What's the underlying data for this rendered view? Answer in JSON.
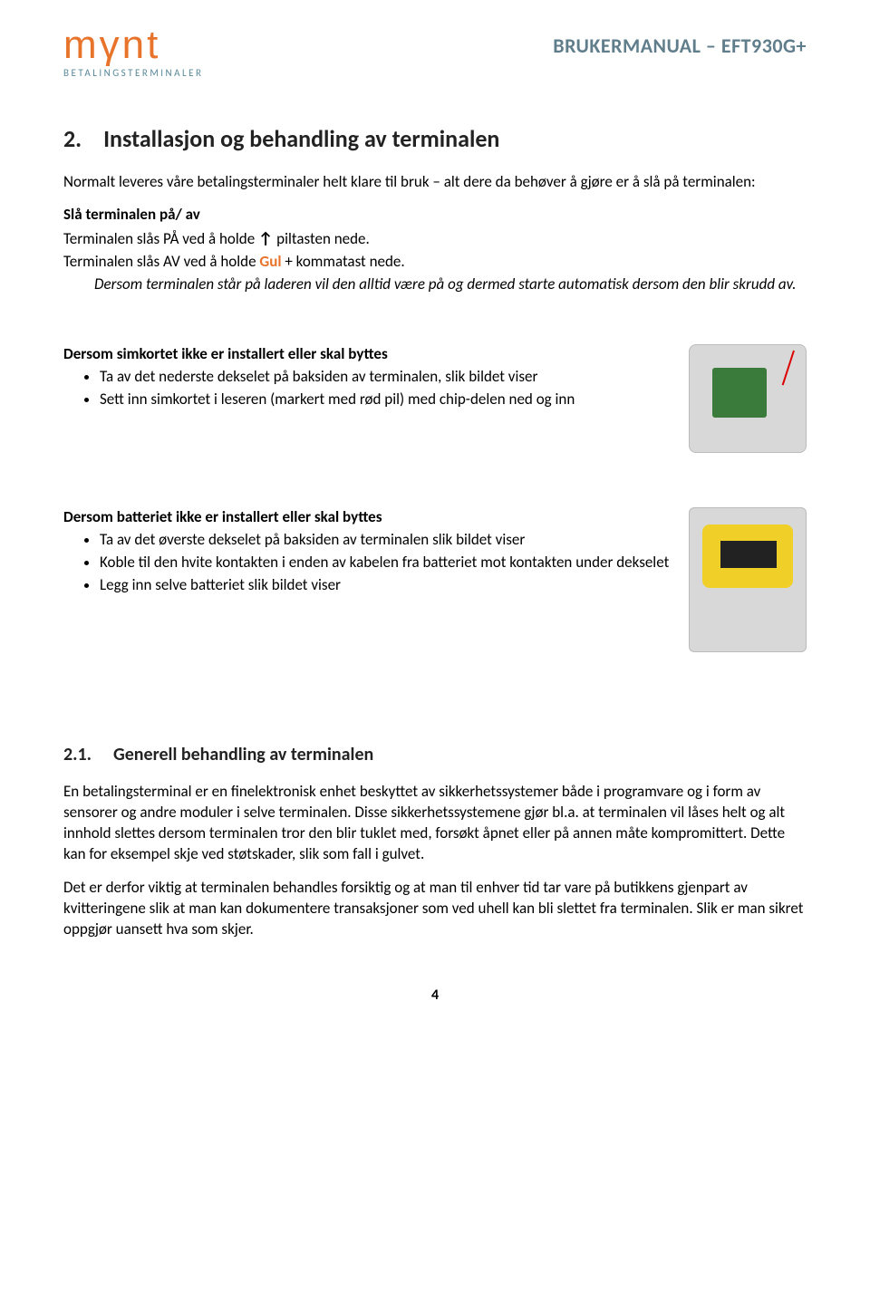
{
  "header": {
    "logo_word": "mγnt",
    "logo_sub": "BETALINGSTERMINALER",
    "title": "BRUKERMANUAL – EFT930G+"
  },
  "section2": {
    "num": "2.",
    "title": "Installasjon og behandling av terminalen",
    "intro": "Normalt leveres våre betalingsterminaler helt klare til bruk – alt dere da behøver å gjøre er å slå på terminalen:",
    "onoff_heading": "Slå terminalen på/ av",
    "on_pre": "Terminalen slås PÅ ved å holde ",
    "on_post": " piltasten nede.",
    "off_pre": "Terminalen slås AV ved å holde ",
    "off_gul": "Gul",
    "off_post": " + kommatast nede.",
    "italic_note": "Dersom terminalen står på laderen vil den alltid være på og dermed starte automatisk dersom den blir skrudd av.",
    "sim_heading": "Dersom simkortet ikke er installert eller skal byttes",
    "sim_li1": "Ta av det nederste dekselet på baksiden av terminalen, slik bildet viser",
    "sim_li2": "Sett inn simkortet i leseren (markert med rød pil) med chip-delen ned og inn",
    "bat_heading": "Dersom batteriet ikke er installert eller skal byttes",
    "bat_li1": "Ta av det øverste dekselet på baksiden av terminalen slik bildet viser",
    "bat_li2": "Koble til den hvite kontakten i enden av kabelen fra batteriet mot kontakten under dekselet",
    "bat_li3": "Legg inn selve batteriet slik bildet viser"
  },
  "section21": {
    "num": "2.1.",
    "title": "Generell behandling av terminalen",
    "p1": "En betalingsterminal er en finelektronisk enhet beskyttet av sikkerhetssystemer både i programvare og i form av sensorer og andre moduler i selve terminalen. Disse sikkerhetssystemene gjør bl.a. at terminalen vil låses helt og alt innhold slettes dersom terminalen tror den blir tuklet med, forsøkt åpnet eller på annen måte kompromittert. Dette kan for eksempel skje ved støtskader, slik som fall i gulvet.",
    "p2": "Det er derfor viktig at terminalen behandles forsiktig og at man til enhver tid tar vare på butikkens gjenpart av kvitteringene slik at man kan dokumentere transaksjoner som ved uhell kan bli slettet fra terminalen. Slik er man sikret oppgjør uansett hva som skjer."
  },
  "page_number": "4",
  "colors": {
    "accent_orange": "#e8742c",
    "header_gray": "#607d8b",
    "logo_sub": "#5a8a9a"
  }
}
